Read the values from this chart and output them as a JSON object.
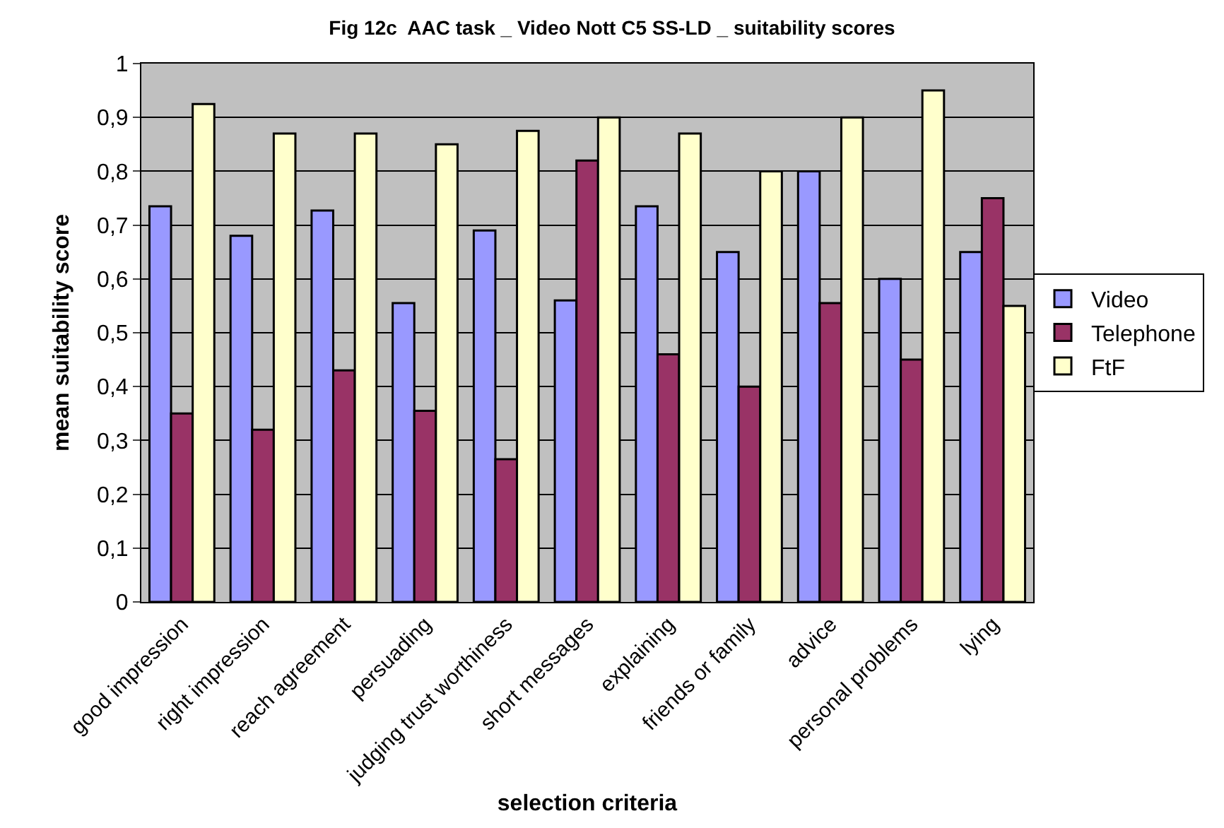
{
  "chart_data": {
    "type": "bar",
    "title": "Fig 12c  AAC task _ Video Nott C5 SS-LD _ suitability scores",
    "xlabel": "selection criteria",
    "ylabel": "mean suitability score",
    "categories": [
      "good impression",
      "right impression",
      "reach agreement",
      "persuading",
      "judging trust worthiness",
      "short messages",
      "explaining",
      "friends or family",
      "advice",
      "personal problems",
      "lying"
    ],
    "series": [
      {
        "name": "Video",
        "color": "#9999ff",
        "values": [
          0.735,
          0.68,
          0.727,
          0.555,
          0.69,
          0.56,
          0.735,
          0.65,
          0.8,
          0.6,
          0.65
        ]
      },
      {
        "name": "Telephone",
        "color": "#993366",
        "values": [
          0.35,
          0.32,
          0.43,
          0.355,
          0.265,
          0.82,
          0.46,
          0.4,
          0.555,
          0.45,
          0.75
        ]
      },
      {
        "name": "FtF",
        "color": "#ffffcc",
        "values": [
          0.925,
          0.87,
          0.87,
          0.85,
          0.875,
          0.9,
          0.87,
          0.8,
          0.9,
          0.95,
          0.55
        ]
      }
    ],
    "ylim": [
      0,
      1
    ],
    "yticks": [
      0,
      {
        "value": 0.1,
        "label": "0,1"
      },
      {
        "value": 0.2,
        "label": "0,2"
      },
      {
        "value": 0.3,
        "label": "0,3"
      },
      {
        "value": 0.4,
        "label": "0,4"
      },
      {
        "value": 0.5,
        "label": "0,5"
      },
      {
        "value": 0.6,
        "label": "0,6"
      },
      {
        "value": 0.7,
        "label": "0,7"
      },
      {
        "value": 0.8,
        "label": "0,8"
      },
      {
        "value": 0.9,
        "label": "0,9"
      },
      1
    ],
    "grid": "y",
    "legend": "right"
  }
}
